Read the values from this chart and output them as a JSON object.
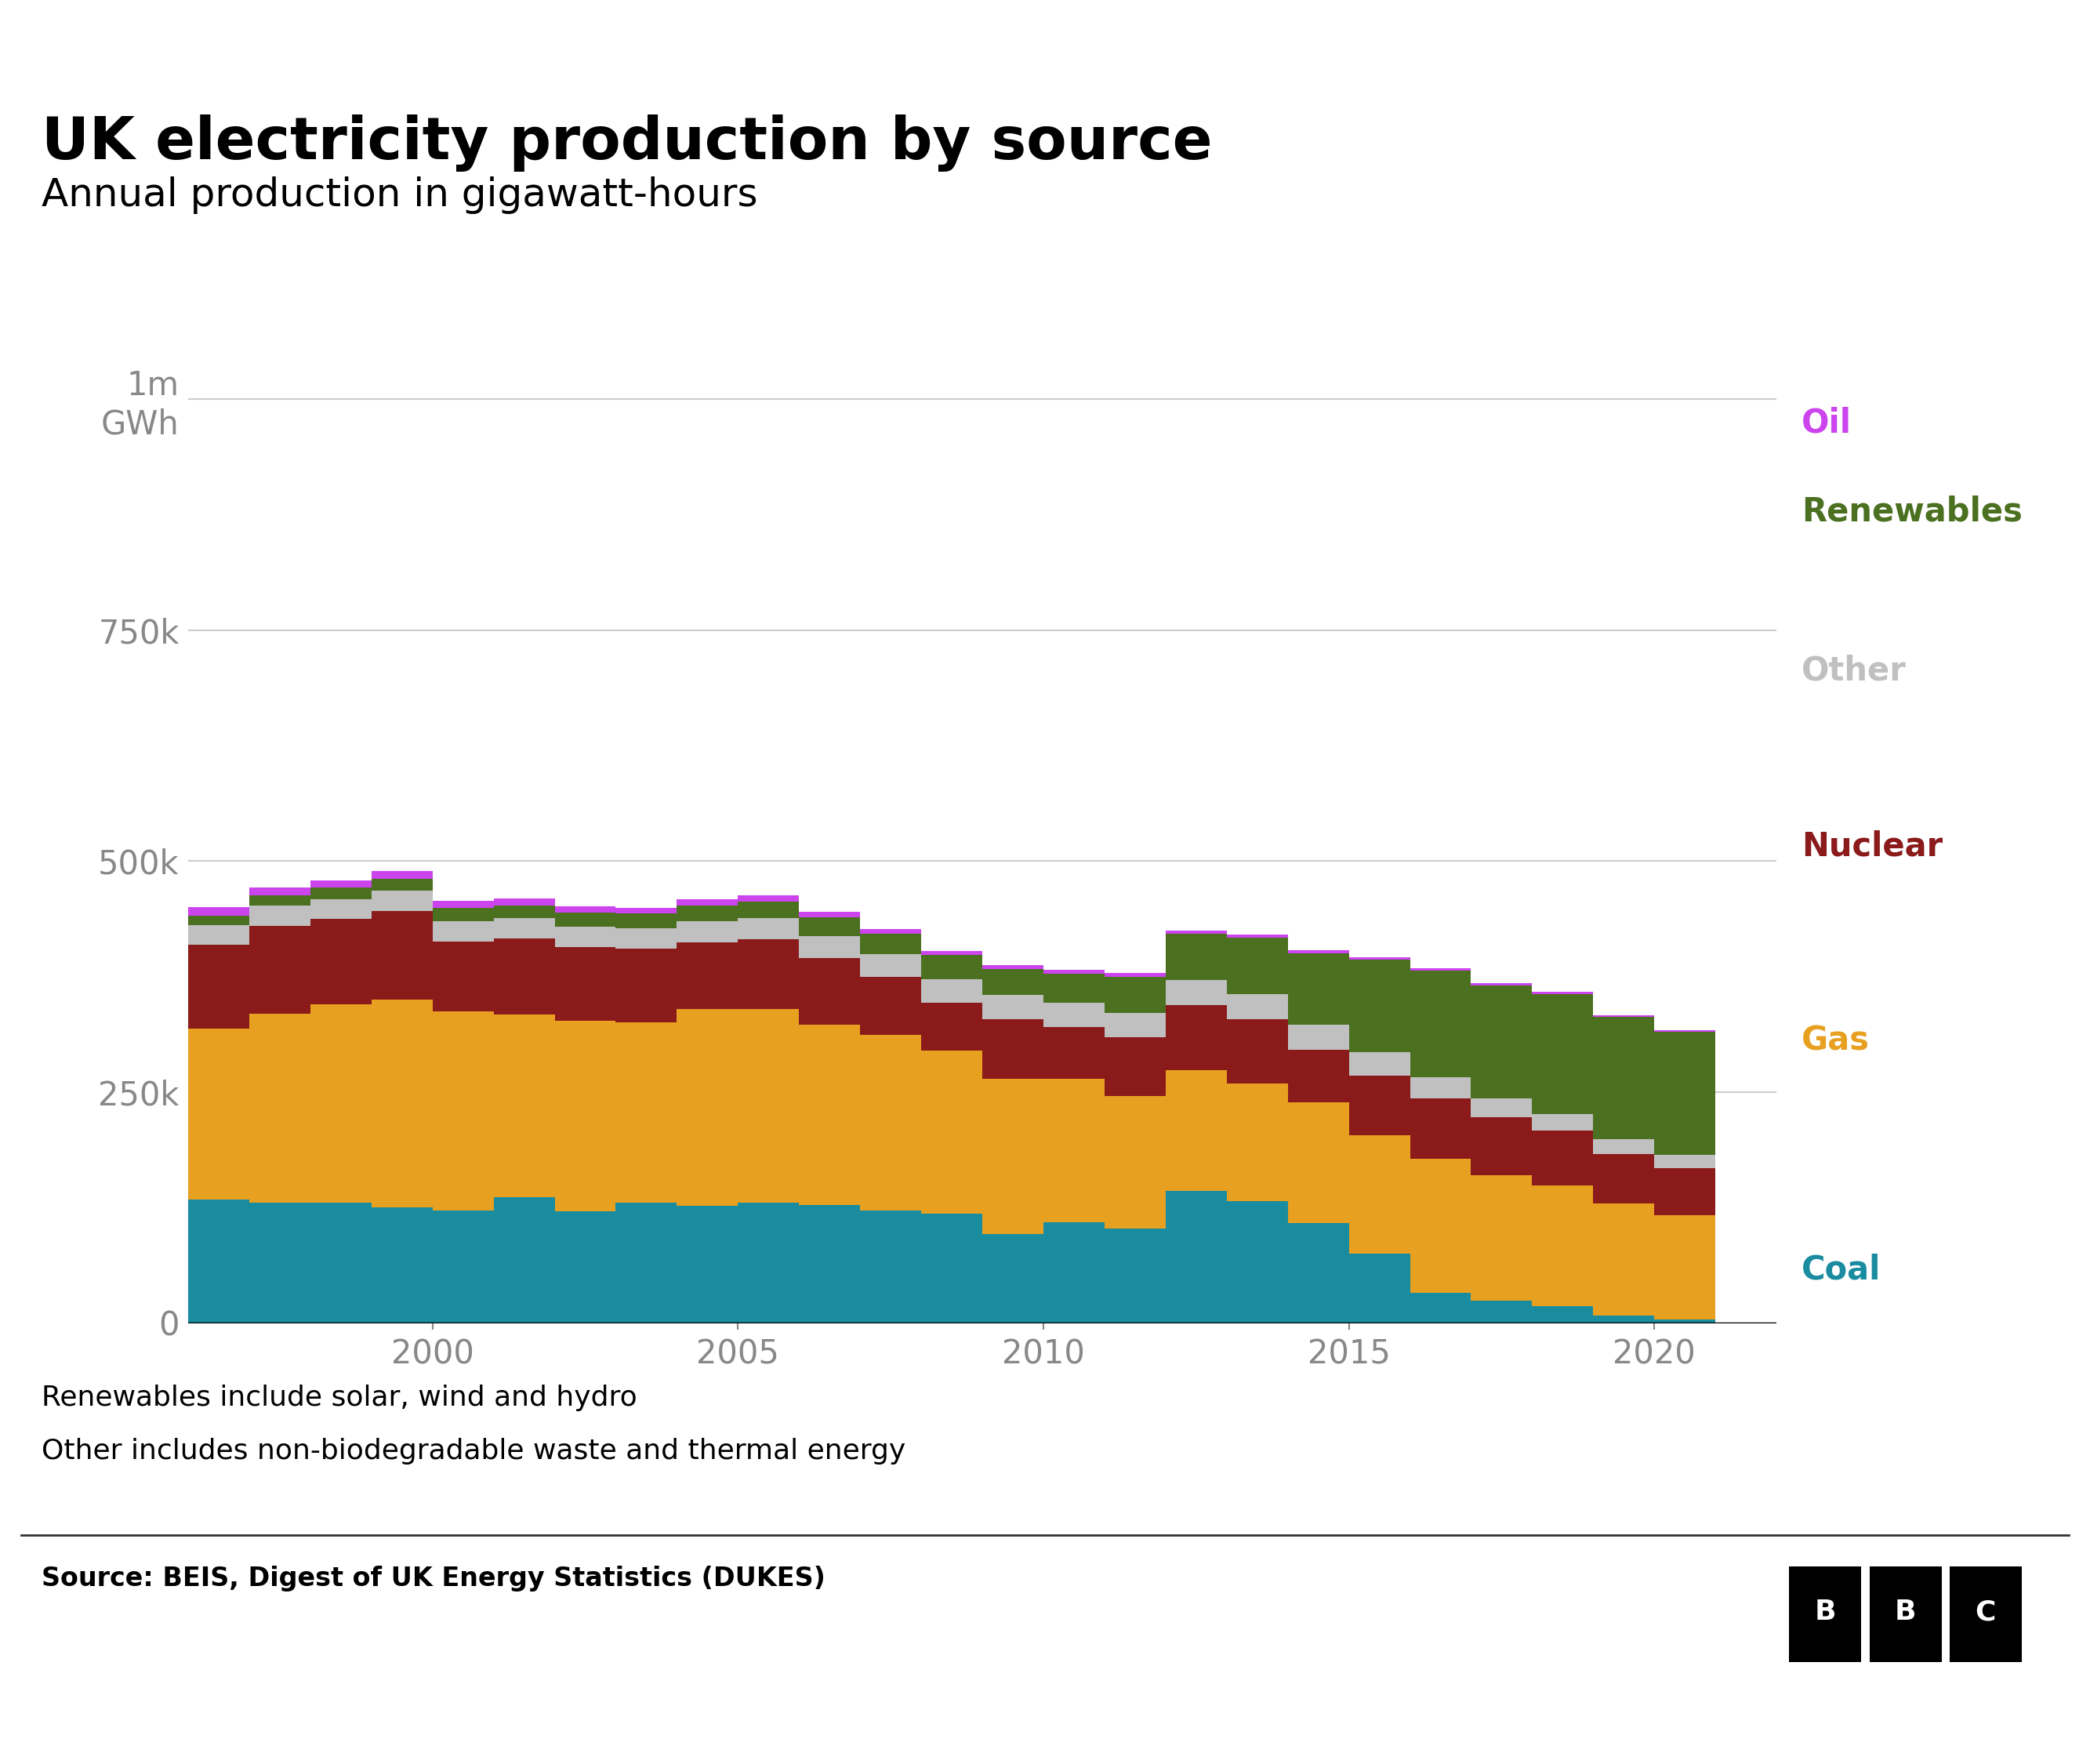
{
  "title": "UK electricity production by source",
  "subtitle": "Annual production in gigawatt-hours",
  "years": [
    1996,
    1997,
    1998,
    1999,
    2000,
    2001,
    2002,
    2003,
    2004,
    2005,
    2006,
    2007,
    2008,
    2009,
    2010,
    2011,
    2012,
    2013,
    2014,
    2015,
    2016,
    2017,
    2018,
    2019,
    2020,
    2021
  ],
  "coal": [
    134000,
    130000,
    130000,
    125000,
    122000,
    136000,
    121000,
    130000,
    127000,
    130000,
    128000,
    122000,
    118000,
    96000,
    109000,
    102000,
    143000,
    132000,
    108000,
    75000,
    33000,
    24000,
    18000,
    8000,
    4000,
    5000
  ],
  "gas": [
    185000,
    205000,
    215000,
    225000,
    215000,
    198000,
    206000,
    195000,
    213000,
    210000,
    195000,
    190000,
    177000,
    168000,
    155000,
    144000,
    131000,
    127000,
    131000,
    128000,
    145000,
    136000,
    131000,
    121000,
    113000,
    135000
  ],
  "nuclear": [
    90000,
    95000,
    92000,
    96000,
    76000,
    82000,
    80000,
    80000,
    72000,
    75000,
    72000,
    63000,
    52000,
    65000,
    56000,
    63000,
    70000,
    70000,
    57000,
    65000,
    65000,
    63000,
    59000,
    54000,
    51000,
    46000
  ],
  "other": [
    22000,
    22000,
    22000,
    22000,
    22000,
    22000,
    22000,
    22000,
    23000,
    23000,
    24000,
    24000,
    25000,
    26000,
    27000,
    27000,
    27000,
    27000,
    27000,
    25000,
    23000,
    20000,
    18000,
    16000,
    14000,
    12000
  ],
  "renewables": [
    10000,
    11000,
    12000,
    13000,
    14000,
    14000,
    15000,
    16000,
    17000,
    18000,
    20000,
    22000,
    26000,
    28000,
    31000,
    39000,
    50000,
    61000,
    77000,
    100000,
    115000,
    122000,
    130000,
    132000,
    133000,
    130000
  ],
  "oil": [
    9000,
    8500,
    8000,
    8000,
    7500,
    7500,
    7000,
    6500,
    6500,
    6500,
    6000,
    5500,
    5000,
    4500,
    4500,
    4000,
    4000,
    3500,
    3500,
    3000,
    3000,
    2500,
    2500,
    2000,
    2000,
    1500
  ],
  "colors": {
    "coal": "#1a8ca0",
    "gas": "#e8a020",
    "nuclear": "#8b1a1a",
    "other": "#c0c0c0",
    "renewables": "#4a7020",
    "oil": "#cc44ee"
  },
  "note1": "Renewables include solar, wind and hydro",
  "note2": "Other includes non-biodegradable waste and thermal energy",
  "source": "Source: BEIS, Digest of UK Energy Statistics (DUKES)",
  "ylim": [
    0,
    1050000
  ],
  "yticks": [
    0,
    250000,
    500000,
    750000,
    1000000
  ]
}
